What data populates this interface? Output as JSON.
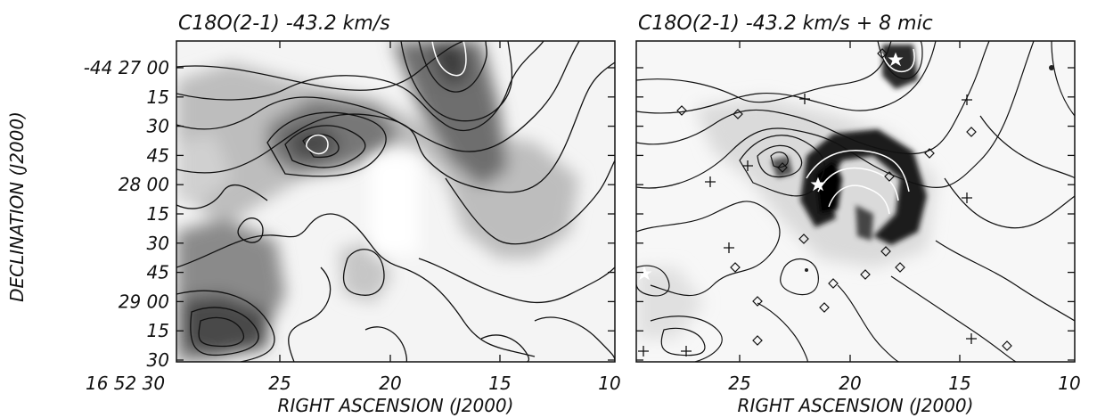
{
  "figure": {
    "panels": [
      {
        "title": "C18O(2-1)  -43.2 km/s"
      },
      {
        "title": "C18O(2-1)  -43.2 km/s  + 8 mic"
      }
    ],
    "ylabel": "DECLINATION (J2000)",
    "xlabel": "RIGHT ASCENSION (J2000)",
    "y_ticks": [
      "-44 27 00",
      "15",
      "30",
      "45",
      "28 00",
      "15",
      "30",
      "45",
      "29 00",
      "15",
      "30"
    ],
    "x_ticks_left": [
      "25",
      "20",
      "15",
      "10"
    ],
    "x_ticks_right": [
      "25",
      "20",
      "15",
      "10"
    ],
    "corner_label": "16 52 30",
    "colors": {
      "ink": "#111111",
      "white_contour": "#ffffff"
    }
  }
}
